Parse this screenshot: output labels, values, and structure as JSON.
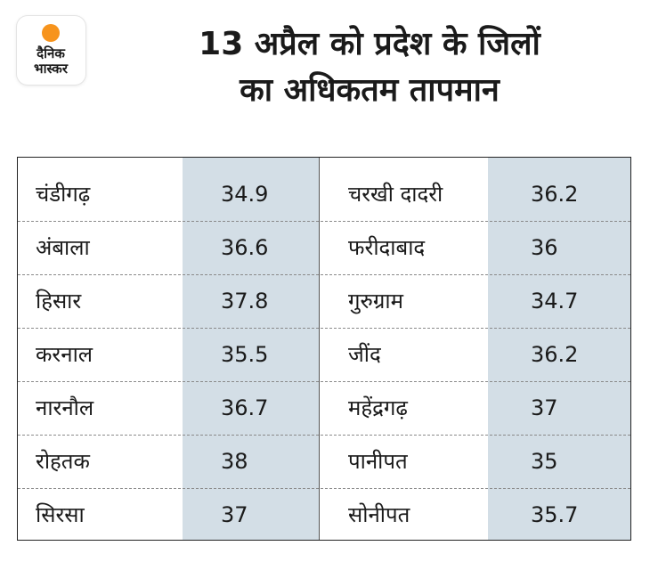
{
  "header": {
    "title_line1": "13 अप्रैल को प्रदेश के जिलों",
    "title_line2": "का अधिकतम तापमान"
  },
  "brand": {
    "logo_line1": "दैनिक",
    "logo_line2": "भास्कर",
    "accent_color": "#f7941d",
    "shade_color": "#d3dee6"
  },
  "chart_data": {
    "type": "table",
    "title": "13 अप्रैल को प्रदेश के जिलों का अधिकतम तापमान",
    "columns": [
      "district",
      "max_temperature"
    ],
    "rows": [
      {
        "district": "चंडीगढ़",
        "value": "34.9"
      },
      {
        "district": "अंबाला",
        "value": "36.6"
      },
      {
        "district": "हिसार",
        "value": "37.8"
      },
      {
        "district": "करनाल",
        "value": "35.5"
      },
      {
        "district": "नारनौल",
        "value": "36.7"
      },
      {
        "district": "रोहतक",
        "value": "38"
      },
      {
        "district": "सिरसा",
        "value": "37"
      },
      {
        "district": "चरखी दादरी",
        "value": "36.2"
      },
      {
        "district": "फरीदाबाद",
        "value": "36"
      },
      {
        "district": "गुरुग्राम",
        "value": "34.7"
      },
      {
        "district": "जींद",
        "value": "36.2"
      },
      {
        "district": "महेंद्रगढ़",
        "value": "37"
      },
      {
        "district": "पानीपत",
        "value": "35"
      },
      {
        "district": "सोनीपत",
        "value": "35.7"
      }
    ]
  }
}
